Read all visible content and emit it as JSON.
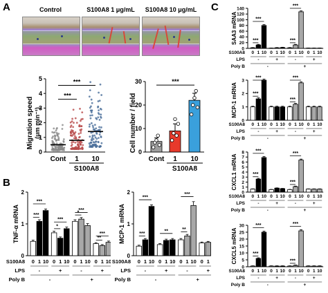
{
  "panels": {
    "a": "A",
    "b": "B",
    "c": "C"
  },
  "micrographs": [
    {
      "label": "Control"
    },
    {
      "label": "S100A8 1 μg/mL"
    },
    {
      "label": "S100A8 10 μg/mL"
    }
  ],
  "chart_data": [
    {
      "type": "scatter",
      "id": "migration",
      "ylabel": "Migration speed",
      "yunit": "(μm min⁻¹)",
      "ylim": [
        0,
        5
      ],
      "yticks": [
        0,
        1,
        2,
        3,
        4,
        5
      ],
      "categories": [
        "Cont",
        "1",
        "10"
      ],
      "group_label": "S100A8",
      "medians": [
        0.5,
        0.8,
        1.4
      ],
      "significance": [
        "***",
        "***"
      ]
    },
    {
      "type": "bar",
      "id": "cellnumber",
      "ylabel": "Cell number / field",
      "ylim": [
        0,
        30
      ],
      "yticks": [
        0,
        10,
        20,
        30
      ],
      "categories": [
        "Cont",
        "1",
        "10"
      ],
      "group_label": "S100A8",
      "values": [
        4.5,
        9,
        22
      ],
      "errors": [
        1.5,
        3,
        3
      ],
      "colors": [
        "#9e9e9e",
        "#e8392b",
        "#3aa0dc"
      ],
      "points": [
        [
          2,
          4,
          5,
          7,
          3
        ],
        [
          5,
          8,
          14,
          7,
          12
        ],
        [
          16,
          20,
          23,
          26,
          19
        ]
      ],
      "significance": [
        "***"
      ]
    },
    {
      "type": "bar",
      "id": "tnfa",
      "ylabel": "TNF-α mRNA",
      "ylim": [
        0,
        2
      ],
      "yticks": [
        0,
        1,
        2
      ],
      "values": [
        0.45,
        1.08,
        1.42,
        0.72,
        0.55,
        0.85,
        1.08,
        1.15,
        0.95,
        0.38,
        0.32,
        0.42
      ],
      "errors": [
        0.04,
        0.05,
        0.05,
        0.05,
        0.04,
        0.05,
        0.05,
        0.05,
        0.06,
        0.03,
        0.03,
        0.04
      ],
      "colors": [
        "#fff",
        "#000",
        "#000",
        "#fff",
        "#000",
        "#000",
        "#fff",
        "#a8a8a8",
        "#a8a8a8",
        "#fff",
        "#a8a8a8",
        "#a8a8a8"
      ],
      "significance": [
        "***",
        "***",
        "***",
        "*",
        "***",
        "***",
        "*",
        "**"
      ]
    },
    {
      "type": "bar",
      "id": "mcp1b",
      "ylabel": "MCP-1 mRNA",
      "ylim": [
        0,
        2
      ],
      "yticks": [
        0,
        1,
        2
      ],
      "values": [
        0.3,
        0.5,
        1.55,
        0.35,
        0.48,
        0.5,
        0.5,
        0.62,
        1.58,
        0.4,
        0.42,
        0.42
      ],
      "errors": [
        0.03,
        0.04,
        0.05,
        0.03,
        0.04,
        0.04,
        0.04,
        0.05,
        0.12,
        0.03,
        0.03,
        0.03
      ],
      "colors": [
        "#fff",
        "#000",
        "#000",
        "#fff",
        "#000",
        "#000",
        "#fff",
        "#a8a8a8",
        "#a8a8a8",
        "#fff",
        "#a8a8a8",
        "#a8a8a8"
      ],
      "significance": [
        "***",
        "***",
        "***",
        "**",
        "**"
      ]
    },
    {
      "type": "bar",
      "id": "saa3",
      "ylabel": "SAA3 mRNA",
      "ylim": [
        0,
        140
      ],
      "yticks": [
        0,
        20,
        40,
        60,
        80,
        100,
        120,
        140
      ],
      "values": [
        2,
        12,
        80,
        1,
        2,
        3,
        2,
        12,
        128,
        1,
        1,
        1
      ],
      "errors": [
        1,
        2,
        3,
        0.5,
        1,
        1,
        1,
        2,
        3,
        0.5,
        0.5,
        0.5
      ],
      "colors": [
        "#fff",
        "#000",
        "#000",
        "#fff",
        "#000",
        "#000",
        "#fff",
        "#a8a8a8",
        "#a8a8a8",
        "#fff",
        "#a8a8a8",
        "#a8a8a8"
      ],
      "significance": [
        "***",
        "***",
        "***",
        "***"
      ]
    },
    {
      "type": "bar",
      "id": "mcp1c",
      "ylabel": "MCP-1 mRNA",
      "ylim": [
        0,
        3
      ],
      "yticks": [
        0,
        1,
        2,
        3
      ],
      "values": [
        1.0,
        1.6,
        3.0,
        1.0,
        1.0,
        1.0,
        1.0,
        1.2,
        2.8,
        1.0,
        1.0,
        1.0
      ],
      "errors": [
        0.05,
        0.08,
        0.08,
        0.05,
        0.05,
        0.05,
        0.05,
        0.06,
        0.08,
        0.05,
        0.05,
        0.05
      ],
      "colors": [
        "#fff",
        "#000",
        "#000",
        "#fff",
        "#000",
        "#000",
        "#fff",
        "#a8a8a8",
        "#a8a8a8",
        "#fff",
        "#a8a8a8",
        "#a8a8a8"
      ],
      "significance": [
        "***",
        "***",
        "***",
        "***"
      ]
    },
    {
      "type": "bar",
      "id": "cxcl1",
      "ylabel": "CXCL1 mRNA",
      "ylim": [
        0,
        8
      ],
      "yticks": [
        0,
        1,
        2,
        3,
        4,
        5,
        6,
        7,
        8
      ],
      "values": [
        0.6,
        2.6,
        6.9,
        0.5,
        0.8,
        0.7,
        0.5,
        1.1,
        6.4,
        0.6,
        0.6,
        0.6
      ],
      "errors": [
        0.05,
        0.15,
        0.2,
        0.05,
        0.05,
        0.05,
        0.05,
        0.1,
        0.2,
        0.05,
        0.05,
        0.05
      ],
      "colors": [
        "#fff",
        "#000",
        "#000",
        "#fff",
        "#000",
        "#000",
        "#fff",
        "#a8a8a8",
        "#a8a8a8",
        "#fff",
        "#a8a8a8",
        "#a8a8a8"
      ],
      "significance": [
        "***",
        "***",
        "***",
        "***"
      ]
    },
    {
      "type": "bar",
      "id": "cxcl5",
      "ylabel": "CXCL5 mRNA",
      "ylim": [
        0,
        30
      ],
      "yticks": [
        0,
        5,
        10,
        15,
        20,
        25,
        30
      ],
      "values": [
        0.5,
        6,
        25,
        0.5,
        0.5,
        0.5,
        0.5,
        1.0,
        26,
        0.5,
        0.5,
        0.5
      ],
      "errors": [
        0.2,
        0.5,
        0.8,
        0.2,
        0.2,
        0.2,
        0.2,
        0.3,
        0.8,
        0.2,
        0.2,
        0.2
      ],
      "colors": [
        "#fff",
        "#000",
        "#000",
        "#fff",
        "#000",
        "#000",
        "#fff",
        "#a8a8a8",
        "#a8a8a8",
        "#fff",
        "#a8a8a8",
        "#a8a8a8"
      ],
      "significance": [
        "***",
        "***",
        "***",
        "***"
      ]
    }
  ],
  "treatment_table": {
    "rows": [
      {
        "label": "S100A8",
        "cells": [
          "0",
          "1",
          "10",
          "0",
          "1",
          "10",
          "0",
          "1",
          "10",
          "0",
          "1",
          "10"
        ]
      },
      {
        "label": "LPS",
        "cells": [
          "-",
          "",
          "",
          "+",
          "",
          "",
          "-",
          "",
          "",
          "+",
          "",
          ""
        ]
      },
      {
        "label": "Poly B",
        "cells": [
          "-",
          "",
          "",
          "",
          "",
          "",
          "+",
          "",
          "",
          "",
          "",
          ""
        ]
      }
    ]
  }
}
